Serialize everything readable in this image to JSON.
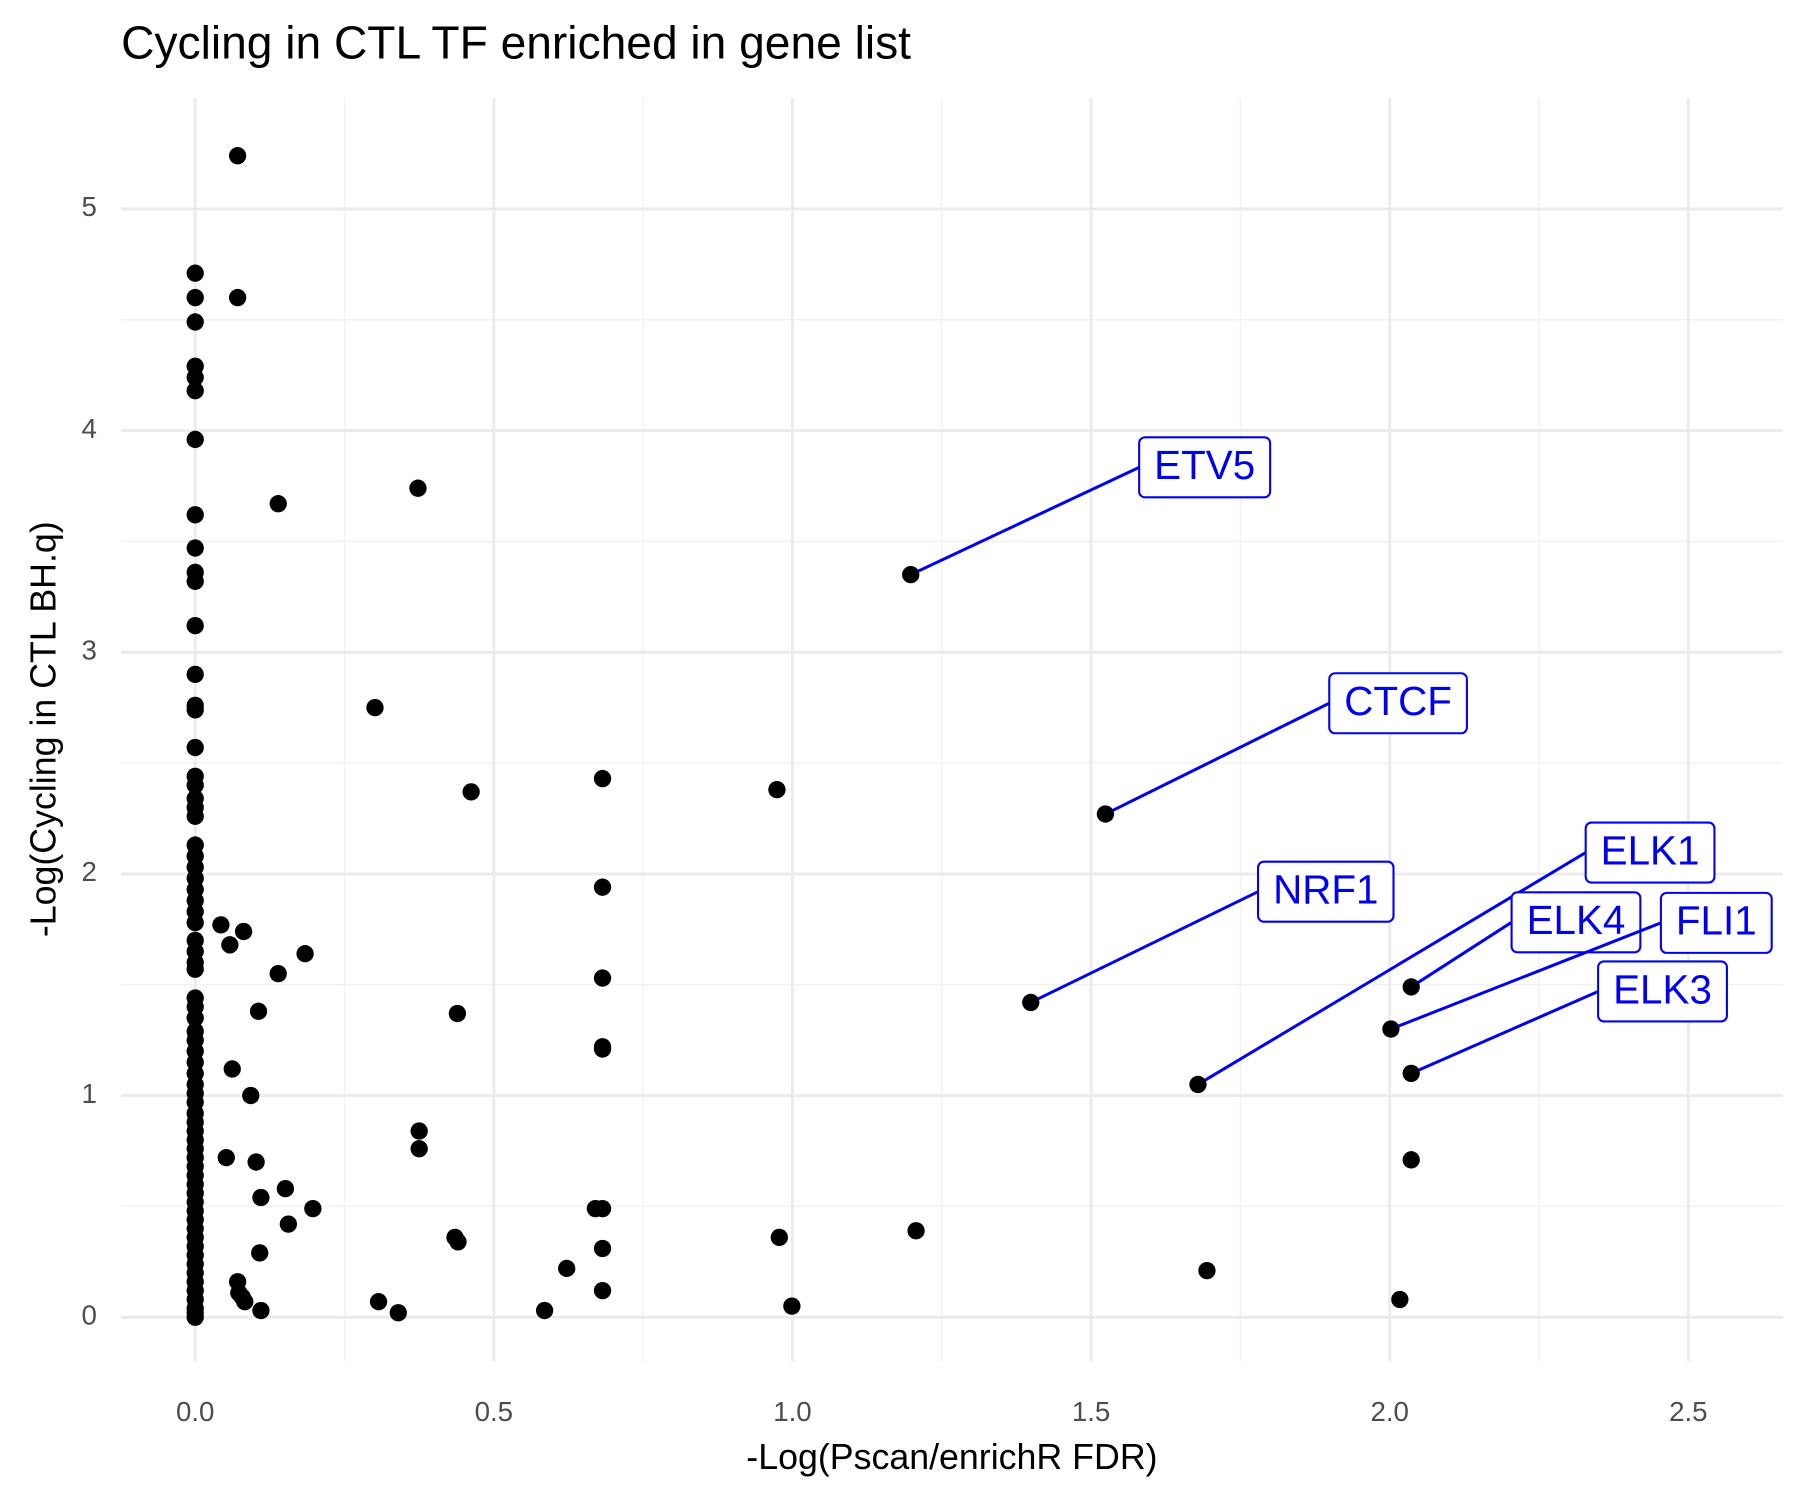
{
  "chart_data": {
    "type": "scatter",
    "title": "Cycling in CTL TF enriched in gene list",
    "x_label": "-Log(Pscan/enrichR FDR)",
    "y_label": "-Log(Cycling in CTL BH.q)",
    "xlim": [
      -0.124,
      2.658
    ],
    "ylim": [
      -0.2,
      5.5
    ],
    "xticks": [
      {
        "value": 0,
        "label": "0.0"
      },
      {
        "value": 0.5,
        "label": "0.5"
      },
      {
        "value": 1,
        "label": "1.0"
      },
      {
        "value": 1.5,
        "label": "1.5"
      },
      {
        "value": 2,
        "label": "2.0"
      },
      {
        "value": 2.5,
        "label": "2.5"
      }
    ],
    "yticks": [
      0,
      1,
      2,
      3,
      4,
      5
    ],
    "grid": true,
    "label_color": "#0000ee",
    "series": [
      {
        "color": "#000000",
        "x": [
          0.071,
          0,
          0,
          0.071,
          0,
          0,
          0,
          0,
          0,
          0.139,
          0.373,
          0,
          0,
          0,
          0,
          0,
          0,
          0,
          0,
          0.301,
          0,
          0,
          0,
          0,
          0,
          0,
          0.462,
          0.682,
          0.974,
          0,
          0,
          0,
          0,
          0,
          0,
          0,
          0,
          0,
          0,
          0,
          0,
          0.682,
          0.043,
          0.081,
          0.058,
          0.184,
          0.139,
          0.682,
          0.106,
          0.439,
          0.682,
          0.682,
          0.062,
          0.093,
          0.375,
          0.375,
          0.052,
          0.102,
          2.036,
          0.151,
          0.11,
          0.197,
          0.156,
          0.67,
          0.682,
          0.435,
          0.44,
          0.978,
          1.207,
          0.108,
          0.682,
          0.622,
          1.694,
          0.071,
          0.073,
          0.079,
          0.083,
          0.682,
          0.307,
          0.34,
          0.11,
          0.585,
          0.999,
          2.017,
          0,
          0,
          0,
          0,
          0,
          0,
          0,
          0,
          0,
          0,
          0,
          0,
          0,
          0,
          0,
          0,
          0,
          0,
          0,
          0,
          0,
          0,
          0,
          0,
          0,
          0,
          0,
          0,
          0,
          0,
          0,
          0,
          0,
          0,
          0,
          0
        ],
        "y": [
          5.24,
          4.71,
          4.6,
          4.6,
          4.49,
          4.29,
          4.24,
          4.18,
          3.96,
          3.67,
          3.74,
          3.62,
          3.47,
          3.36,
          3.32,
          3.12,
          2.9,
          2.76,
          2.74,
          2.75,
          2.57,
          2.44,
          2.4,
          2.34,
          2.3,
          2.26,
          2.37,
          2.43,
          2.38,
          2.13,
          2.08,
          2.03,
          1.98,
          1.93,
          1.88,
          1.83,
          1.78,
          1.7,
          1.65,
          1.6,
          1.57,
          1.94,
          1.77,
          1.74,
          1.68,
          1.64,
          1.55,
          1.53,
          1.38,
          1.37,
          1.22,
          1.21,
          1.12,
          1.0,
          0.84,
          0.76,
          0.72,
          0.7,
          0.71,
          0.58,
          0.54,
          0.49,
          0.42,
          0.49,
          0.49,
          0.36,
          0.34,
          0.36,
          0.39,
          0.29,
          0.31,
          0.22,
          0.21,
          0.16,
          0.11,
          0.09,
          0.07,
          0.12,
          0.07,
          0.02,
          0.03,
          0.03,
          0.05,
          0.08,
          1.44,
          1.4,
          1.35,
          1.29,
          1.25,
          1.2,
          1.15,
          1.1,
          1.05,
          1.01,
          0.97,
          0.92,
          0.88,
          0.84,
          0.8,
          0.76,
          0.72,
          0.68,
          0.64,
          0.6,
          0.56,
          0.52,
          0.48,
          0.44,
          0.4,
          0.36,
          0.32,
          0.28,
          0.24,
          0.2,
          0.16,
          0.12,
          0.08,
          0.04,
          0.02,
          0
        ]
      },
      {
        "color": "#000000",
        "x": [
          1.198,
          1.524,
          1.399,
          1.679,
          2.036,
          2.002,
          2.036
        ],
        "y": [
          3.35,
          2.27,
          1.42,
          1.05,
          1.49,
          1.3,
          1.1
        ],
        "labels": [
          "ETV5",
          "CTCF",
          "NRF1",
          "ELK1",
          "ELK4",
          "FLI1",
          "ELK3"
        ]
      }
    ]
  }
}
